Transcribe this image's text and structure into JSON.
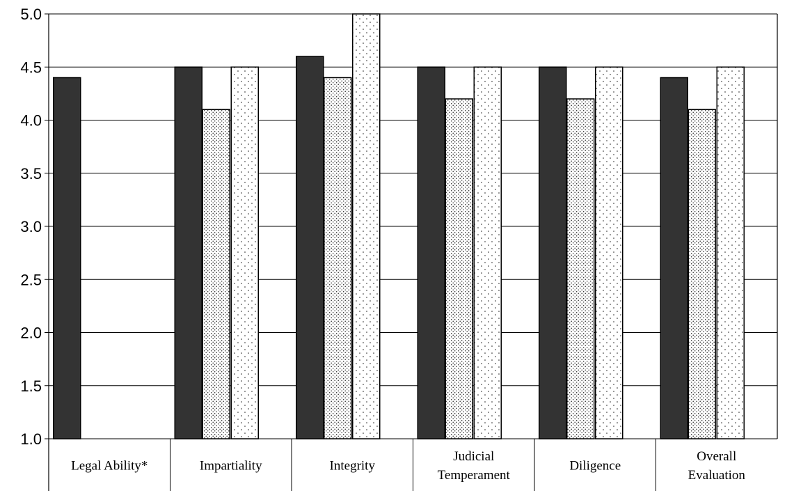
{
  "chart_data": {
    "type": "bar",
    "categories": [
      [
        "Legal Ability*"
      ],
      [
        "Impartiality"
      ],
      [
        "Integrity"
      ],
      [
        "Judicial",
        "Temperament"
      ],
      [
        "Diligence"
      ],
      [
        "Overall",
        "Evaluation"
      ]
    ],
    "series": [
      {
        "values": [
          4.4,
          4.5,
          4.6,
          4.5,
          4.5,
          4.4
        ],
        "fill": "#333333",
        "pattern": "solid"
      },
      {
        "values": [
          null,
          4.1,
          4.4,
          4.2,
          4.2,
          4.1
        ],
        "fill": "#ffffff",
        "pattern": "dense-dots"
      },
      {
        "values": [
          null,
          4.5,
          5.0,
          4.5,
          4.5,
          4.5
        ],
        "fill": "#ffffff",
        "pattern": "sparse-dots"
      }
    ],
    "ylim": [
      1.0,
      5.0
    ],
    "yticks": [
      "1.0",
      "1.5",
      "2.0",
      "2.5",
      "3.0",
      "3.5",
      "4.0",
      "4.5",
      "5.0"
    ],
    "grid": true,
    "legend": "none"
  }
}
